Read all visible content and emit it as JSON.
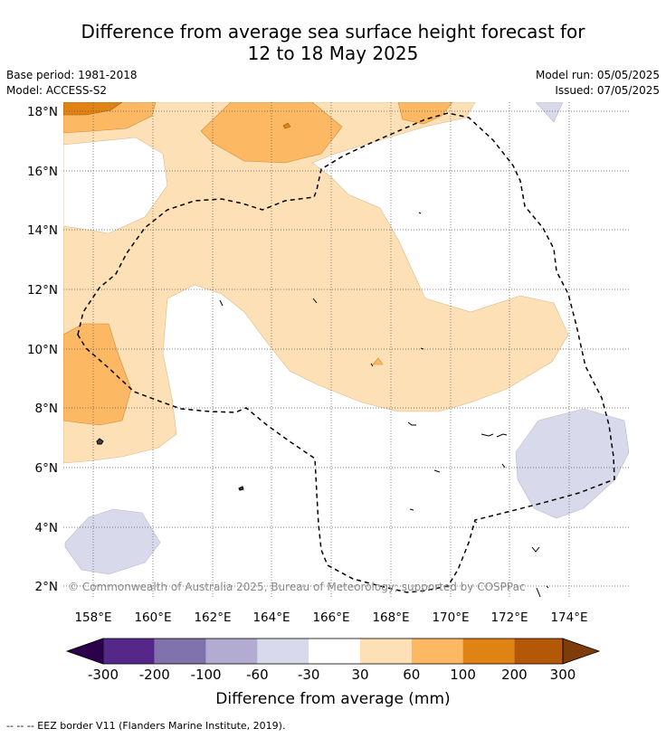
{
  "title": {
    "line1": "Difference from average sea surface height forecast for",
    "line2": "12 to 18 May 2025"
  },
  "info": {
    "base_period": "Base period: 1981-2018",
    "model": "Model: ACCESS-S2",
    "model_run": "Model run: 05/05/2025",
    "issued": "Issued: 07/05/2025"
  },
  "map": {
    "lat_labels": [
      "18°N",
      "16°N",
      "14°N",
      "12°N",
      "10°N",
      "8°N",
      "6°N",
      "4°N",
      "2°N"
    ],
    "lon_labels": [
      "158°E",
      "160°E",
      "162°E",
      "164°E",
      "166°E",
      "168°E",
      "170°E",
      "172°E",
      "174°E"
    ],
    "copyright": "© Commonwealth of Australia 2025, Bureau of Meteorology; supported by COSPPac"
  },
  "colorbar": {
    "colors": [
      "#2d004b",
      "#542788",
      "#8073ac",
      "#b2abd2",
      "#d8daeb",
      "#ffffff",
      "#fee0b6",
      "#fdb863",
      "#e08214",
      "#b35806",
      "#7f3b08"
    ],
    "ticks": [
      "-300",
      "-200",
      "-100",
      "-60",
      "-30",
      "30",
      "60",
      "100",
      "200",
      "300"
    ],
    "label": "Difference from average (mm)"
  },
  "legend_note": "--  --  -- EEZ border V11 (Flanders Marine Institute, 2019)."
}
